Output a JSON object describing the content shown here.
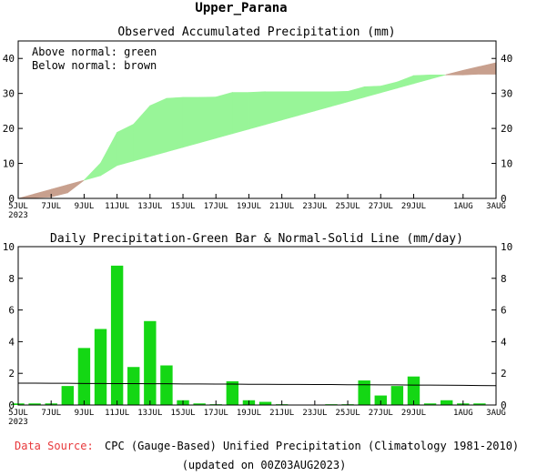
{
  "page_title": "Upper_Parana",
  "footer": {
    "source_label": "Data Source:",
    "source_text": "CPC (Gauge-Based) Unified Precipitation (Climatology 1981-2010)",
    "updated_text": "(updated on 00Z03AUG2023)"
  },
  "colors": {
    "above_normal": "#98f598",
    "below_normal": "#c8a08e",
    "bar": "#14d714",
    "line": "#000000",
    "source_label": "#e8383b"
  },
  "chart_data": [
    {
      "type": "area",
      "title": "Observed Accumulated Precipitation (mm)",
      "legend_lines": [
        "Above normal: green",
        "Below normal: brown"
      ],
      "legend_position": "top-left",
      "ylim": [
        0,
        45
      ],
      "yticks": [
        0,
        10,
        20,
        30,
        40
      ],
      "x_tick_labels": [
        {
          "day": 0,
          "label": "5JUL",
          "sub": "2023"
        },
        {
          "day": 2,
          "label": "7JUL"
        },
        {
          "day": 4,
          "label": "9JUL"
        },
        {
          "day": 6,
          "label": "11JUL"
        },
        {
          "day": 8,
          "label": "13JUL"
        },
        {
          "day": 10,
          "label": "15JUL"
        },
        {
          "day": 12,
          "label": "17JUL"
        },
        {
          "day": 14,
          "label": "19JUL"
        },
        {
          "day": 16,
          "label": "21JUL"
        },
        {
          "day": 18,
          "label": "23JUL"
        },
        {
          "day": 20,
          "label": "25JUL"
        },
        {
          "day": 22,
          "label": "27JUL"
        },
        {
          "day": 24,
          "label": "29JUL"
        },
        {
          "day": 27,
          "label": "1AUG"
        },
        {
          "day": 29,
          "label": "3AUG"
        }
      ],
      "x": [
        0,
        1,
        2,
        3,
        4,
        5,
        6,
        7,
        8,
        9,
        10,
        11,
        12,
        13,
        14,
        15,
        16,
        17,
        18,
        19,
        20,
        21,
        22,
        23,
        24,
        25,
        26,
        27,
        28,
        29
      ],
      "series": [
        {
          "name": "Observed",
          "values": [
            0,
            0.2,
            0.4,
            1.6,
            5.2,
            10.1,
            18.9,
            21.2,
            26.5,
            28.6,
            28.9,
            28.9,
            29.0,
            30.3,
            30.3,
            30.5,
            30.5,
            30.5,
            30.5,
            30.5,
            30.6,
            31.9,
            32.1,
            33.3,
            35.1,
            35.3,
            35.3,
            35.3,
            35.5,
            35.5
          ]
        },
        {
          "name": "Normal",
          "values": [
            0,
            1.3,
            2.6,
            3.9,
            5.2,
            6.5,
            9.4,
            10.7,
            12.0,
            13.3,
            14.6,
            15.9,
            17.2,
            18.5,
            19.8,
            21.1,
            22.4,
            23.7,
            25.0,
            26.3,
            27.6,
            28.9,
            30.2,
            31.5,
            32.8,
            34.1,
            35.4,
            36.6,
            37.7,
            38.8
          ]
        }
      ]
    },
    {
      "type": "bar",
      "title": "Daily Precipitation-Green Bar & Normal-Solid Line (mm/day)",
      "ylim": [
        0,
        10
      ],
      "yticks": [
        0,
        2,
        4,
        6,
        8,
        10
      ],
      "x_tick_labels": [
        {
          "day": 0,
          "label": "5JUL",
          "sub": "2023"
        },
        {
          "day": 2,
          "label": "7JUL"
        },
        {
          "day": 4,
          "label": "9JUL"
        },
        {
          "day": 6,
          "label": "11JUL"
        },
        {
          "day": 8,
          "label": "13JUL"
        },
        {
          "day": 10,
          "label": "15JUL"
        },
        {
          "day": 12,
          "label": "17JUL"
        },
        {
          "day": 14,
          "label": "19JUL"
        },
        {
          "day": 16,
          "label": "21JUL"
        },
        {
          "day": 18,
          "label": "23JUL"
        },
        {
          "day": 20,
          "label": "25JUL"
        },
        {
          "day": 22,
          "label": "27JUL"
        },
        {
          "day": 24,
          "label": "29JUL"
        },
        {
          "day": 27,
          "label": "1AUG"
        },
        {
          "day": 29,
          "label": "3AUG"
        }
      ],
      "x": [
        0,
        1,
        2,
        3,
        4,
        5,
        6,
        7,
        8,
        9,
        10,
        11,
        12,
        13,
        14,
        15,
        16,
        17,
        18,
        19,
        20,
        21,
        22,
        23,
        24,
        25,
        26,
        27,
        28,
        29
      ],
      "values": [
        0.1,
        0.1,
        0.1,
        1.2,
        3.6,
        4.8,
        8.8,
        2.4,
        5.3,
        2.5,
        0.3,
        0.1,
        0.05,
        1.5,
        0.3,
        0.2,
        0.05,
        0,
        0,
        0.05,
        0.05,
        1.55,
        0.6,
        1.2,
        1.8,
        0.1,
        0.3,
        0.1,
        0.1,
        0
      ],
      "normal": [
        1.38,
        1.38,
        1.37,
        1.37,
        1.36,
        1.36,
        1.35,
        1.35,
        1.34,
        1.34,
        1.33,
        1.33,
        1.32,
        1.32,
        1.31,
        1.31,
        1.3,
        1.3,
        1.29,
        1.29,
        1.28,
        1.28,
        1.27,
        1.27,
        1.26,
        1.26,
        1.25,
        1.24,
        1.23,
        1.22
      ]
    }
  ]
}
